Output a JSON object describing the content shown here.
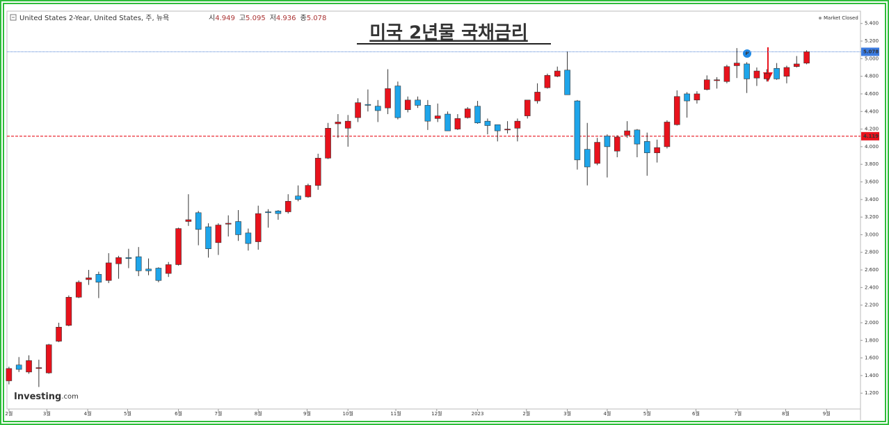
{
  "chart_data": {
    "type": "candlestick",
    "title": "미국 2년물 국채금리",
    "instrument": "United States 2-Year, United States, 주, 뉴욕",
    "ohlc_labels": [
      "시",
      "고",
      "저",
      "종"
    ],
    "status": "Market Closed",
    "watermark": "Investing",
    "watermark_suffix": ".com",
    "up_color": "#e8121c",
    "down_color": "#1ea5ea",
    "open": [
      1.34,
      1.52,
      1.44,
      1.48,
      1.43,
      1.79,
      1.97,
      2.29,
      2.49,
      2.55,
      2.48,
      2.67,
      2.74,
      2.75,
      2.61,
      2.62,
      2.56,
      2.66,
      3.15,
      3.25,
      3.09,
      2.91,
      3.12,
      3.15,
      3.02,
      2.92,
      3.26,
      3.27,
      3.26,
      3.44,
      3.43,
      3.56,
      3.87,
      4.26,
      4.21,
      4.33,
      4.48,
      4.46,
      4.44,
      4.69,
      4.42,
      4.53,
      4.47,
      4.32,
      4.37,
      4.2,
      4.33,
      4.46,
      4.29,
      4.25,
      4.19,
      4.21,
      4.35,
      4.52,
      4.67,
      4.8,
      4.87,
      4.52,
      3.97,
      3.81,
      4.12,
      3.95,
      4.13,
      4.19,
      4.06,
      3.93,
      4.0,
      4.25,
      4.6,
      4.53,
      4.65,
      4.75,
      4.74,
      4.92,
      4.94,
      4.78,
      4.77,
      4.89,
      4.8,
      4.91,
      4.949
    ],
    "high": [
      1.5,
      1.61,
      1.63,
      1.58,
      1.76,
      2.0,
      2.31,
      2.48,
      2.6,
      2.58,
      2.79,
      2.76,
      2.84,
      2.86,
      2.73,
      2.63,
      2.69,
      3.08,
      3.46,
      3.27,
      3.13,
      3.13,
      3.22,
      3.28,
      3.07,
      3.33,
      3.29,
      3.28,
      3.46,
      3.56,
      3.58,
      3.92,
      4.27,
      4.37,
      4.36,
      4.55,
      4.65,
      4.53,
      4.88,
      4.74,
      4.57,
      4.57,
      4.53,
      4.49,
      4.4,
      4.37,
      4.45,
      4.52,
      4.32,
      4.25,
      4.29,
      4.32,
      4.53,
      4.72,
      4.83,
      4.91,
      5.08,
      4.53,
      4.27,
      4.1,
      4.14,
      4.13,
      4.29,
      4.2,
      4.16,
      4.08,
      4.3,
      4.64,
      4.62,
      4.63,
      4.81,
      4.79,
      4.93,
      5.12,
      4.96,
      4.9,
      4.88,
      4.95,
      4.92,
      5.03,
      5.095
    ],
    "low": [
      1.3,
      1.44,
      1.42,
      1.27,
      1.42,
      1.78,
      1.96,
      2.28,
      2.43,
      2.28,
      2.45,
      2.5,
      2.62,
      2.53,
      2.54,
      2.46,
      2.52,
      2.65,
      3.1,
      2.88,
      2.74,
      2.77,
      2.98,
      2.93,
      2.82,
      2.83,
      3.08,
      3.17,
      3.24,
      3.38,
      3.42,
      3.51,
      3.86,
      4.1,
      4.0,
      4.28,
      4.4,
      4.28,
      4.37,
      4.31,
      4.39,
      4.44,
      4.19,
      4.28,
      4.18,
      4.19,
      4.32,
      4.26,
      4.14,
      4.06,
      4.15,
      4.06,
      4.32,
      4.49,
      4.66,
      4.79,
      4.59,
      3.74,
      3.56,
      3.79,
      3.65,
      3.88,
      4.1,
      3.88,
      3.67,
      3.82,
      3.98,
      4.24,
      4.33,
      4.49,
      4.64,
      4.66,
      4.72,
      4.78,
      4.61,
      4.69,
      4.74,
      4.76,
      4.72,
      4.9,
      4.936
    ],
    "close": [
      1.48,
      1.47,
      1.57,
      1.49,
      1.75,
      1.95,
      2.29,
      2.46,
      2.51,
      2.46,
      2.68,
      2.74,
      2.73,
      2.59,
      2.59,
      2.48,
      2.66,
      3.07,
      3.17,
      3.06,
      2.84,
      3.11,
      3.13,
      3.0,
      2.9,
      3.24,
      3.25,
      3.24,
      3.38,
      3.4,
      3.56,
      3.87,
      4.21,
      4.28,
      4.29,
      4.5,
      4.47,
      4.41,
      4.66,
      4.33,
      4.53,
      4.47,
      4.29,
      4.35,
      4.18,
      4.32,
      4.43,
      4.27,
      4.24,
      4.18,
      4.2,
      4.29,
      4.53,
      4.62,
      4.81,
      4.86,
      4.59,
      3.85,
      3.77,
      4.05,
      4.0,
      4.11,
      4.18,
      4.03,
      3.93,
      3.99,
      4.28,
      4.57,
      4.52,
      4.6,
      4.76,
      4.76,
      4.91,
      4.95,
      4.77,
      4.86,
      4.83,
      4.77,
      4.9,
      4.94,
      5.078
    ],
    "reference_line": 4.119,
    "ylim": [
      1.02,
      5.54
    ],
    "yticks": [
      {
        "value": 1.2,
        "label": "1.200"
      },
      {
        "value": 1.4,
        "label": "1.400"
      },
      {
        "value": 1.6,
        "label": "1.600"
      },
      {
        "value": 1.8,
        "label": "1.800"
      },
      {
        "value": 2.0,
        "label": "2.000"
      },
      {
        "value": 2.2,
        "label": "2.200"
      },
      {
        "value": 2.4,
        "label": "2.400"
      },
      {
        "value": 2.6,
        "label": "2.600"
      },
      {
        "value": 2.8,
        "label": "2.800"
      },
      {
        "value": 3.0,
        "label": "3.000"
      },
      {
        "value": 3.2,
        "label": "3.200"
      },
      {
        "value": 3.4,
        "label": "3.400"
      },
      {
        "value": 3.6,
        "label": "3.600"
      },
      {
        "value": 3.8,
        "label": "3.800"
      },
      {
        "value": 4.0,
        "label": "4.000"
      },
      {
        "value": 4.2,
        "label": "4.200"
      },
      {
        "value": 4.4,
        "label": "4.400"
      },
      {
        "value": 4.6,
        "label": "4.600"
      },
      {
        "value": 4.8,
        "label": "4.800"
      },
      {
        "value": 5.0,
        "label": "5.000"
      },
      {
        "value": 5.2,
        "label": "5.200"
      },
      {
        "value": 5.4,
        "label": "5.400"
      }
    ],
    "xlim": [
      -0.2,
      85.4
    ],
    "xticks": [
      {
        "value": 0,
        "label": "2월"
      },
      {
        "value": 3.8,
        "label": "3월"
      },
      {
        "value": 7.9,
        "label": "4월"
      },
      {
        "value": 11.9,
        "label": "5월"
      },
      {
        "value": 17,
        "label": "6월"
      },
      {
        "value": 21,
        "label": "7월"
      },
      {
        "value": 25,
        "label": "8월"
      },
      {
        "value": 29.9,
        "label": "9월"
      },
      {
        "value": 34,
        "label": "10월"
      },
      {
        "value": 38.8,
        "label": "11월"
      },
      {
        "value": 42.9,
        "label": "12월"
      },
      {
        "value": 47,
        "label": "2023"
      },
      {
        "value": 51.9,
        "label": "2월"
      },
      {
        "value": 56,
        "label": "3월"
      },
      {
        "value": 60,
        "label": "4월"
      },
      {
        "value": 64,
        "label": "5월"
      },
      {
        "value": 68.9,
        "label": "6월"
      },
      {
        "value": 73.1,
        "label": "7월"
      },
      {
        "value": 77.9,
        "label": "8월"
      },
      {
        "value": 82,
        "label": "9월"
      }
    ]
  }
}
